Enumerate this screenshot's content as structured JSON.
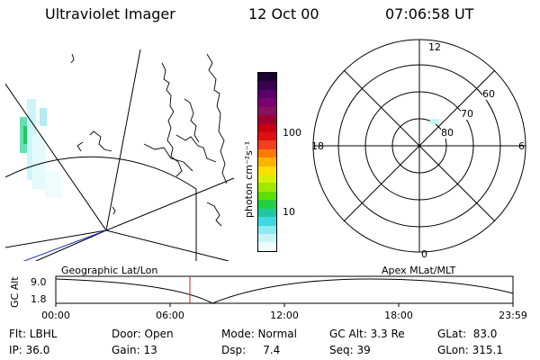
{
  "header": {
    "instrument": "Ultraviolet Imager",
    "date": "12 Oct 00",
    "time": "07:06:58 UT"
  },
  "colorbar": {
    "unit_label": "photon cm⁻²s⁻¹",
    "ticks": [
      "100",
      "10"
    ],
    "colors": [
      "#1a0033",
      "#3a0050",
      "#5a006a",
      "#7a0070",
      "#8a1060",
      "#a00030",
      "#c80010",
      "#e01010",
      "#f04020",
      "#ff7a00",
      "#ffb400",
      "#ffe000",
      "#d8f000",
      "#a0e800",
      "#60e000",
      "#20d040",
      "#20c8a0",
      "#40d8e0",
      "#90e8f0",
      "#c8f4f8",
      "#eefcfc"
    ]
  },
  "polar_plot": {
    "mlt_labels": {
      "top": "12",
      "left": "18",
      "right": "6",
      "bottom": "0"
    },
    "lat_labels": [
      "60",
      "70",
      "80"
    ]
  },
  "panel_labels": {
    "left": "Geographic Lat/Lon",
    "right": "Apex MLat/MLT"
  },
  "altitude_plot": {
    "y_axis_title": "GC Alt",
    "y_ticks": [
      "9.0",
      "1.8"
    ],
    "x_ticks": [
      "00:00",
      "06:00",
      "12:00",
      "18:00",
      "23:59"
    ],
    "marker_color": "#d02020"
  },
  "info": {
    "flt": "Flt: LBHL",
    "ip": "IP: 36.0",
    "door": "Door: Open",
    "gain": "Gain: 13",
    "mode": "Mode: Normal",
    "dsp": "Dsp:     7.4",
    "gc_alt": "GC Alt: 3.3 Re",
    "seq": "Seq: 39",
    "glat": "GLat:  83.0",
    "glon": "GLon: 315.1"
  }
}
